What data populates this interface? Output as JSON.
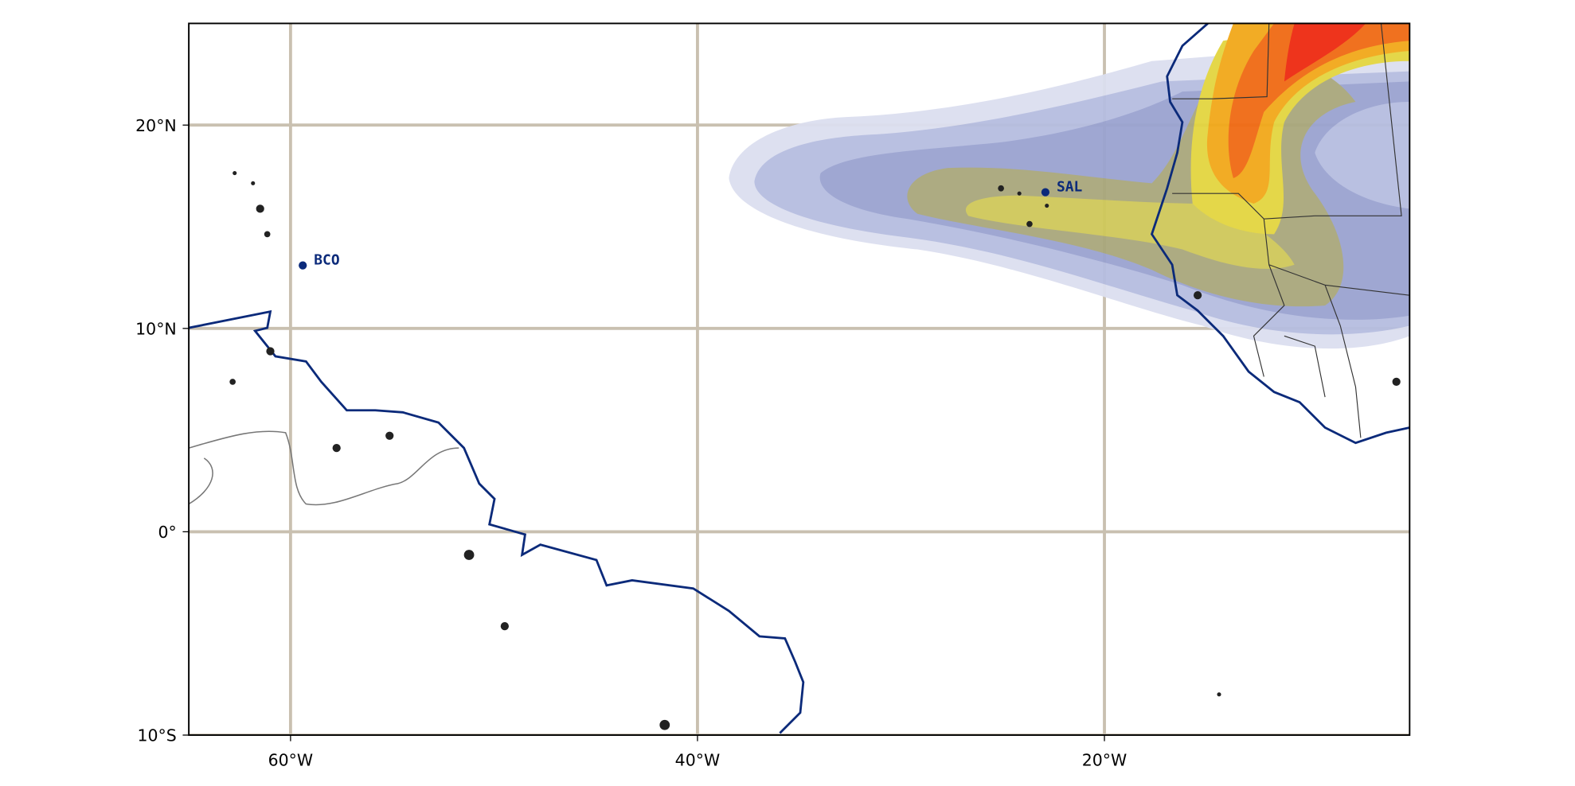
{
  "map": {
    "xlim": [
      -65,
      -5
    ],
    "ylim": [
      -10,
      25
    ],
    "xticks": [
      {
        "value": -60,
        "label": "60°W"
      },
      {
        "value": -40,
        "label": "40°W"
      },
      {
        "value": -20,
        "label": "20°W"
      }
    ],
    "yticks": [
      {
        "value": -10,
        "label": "10°S"
      },
      {
        "value": 0,
        "label": "0°"
      },
      {
        "value": 10,
        "label": "10°N"
      },
      {
        "value": 20,
        "label": "20°N"
      }
    ],
    "stations": [
      {
        "name": "BCO",
        "lon": -59.4,
        "lat": 13.1
      },
      {
        "name": "SAL",
        "lon": -22.9,
        "lat": 16.7
      }
    ]
  }
}
